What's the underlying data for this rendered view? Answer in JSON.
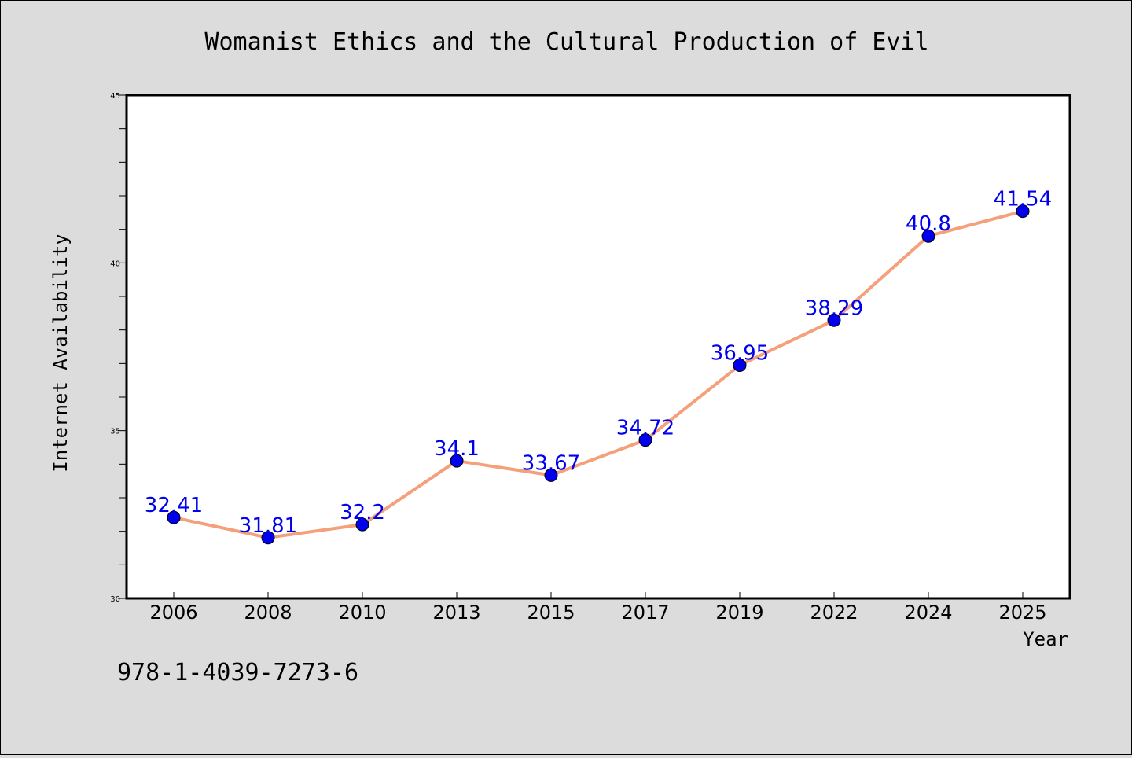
{
  "chart_data": {
    "type": "line",
    "title": "Womanist Ethics and the Cultural Production of Evil",
    "xlabel": "Year",
    "ylabel": "Internet Availability",
    "categories": [
      "2006",
      "2008",
      "2010",
      "2013",
      "2015",
      "2017",
      "2019",
      "2022",
      "2024",
      "2025"
    ],
    "series": [
      {
        "values": [
          32.41,
          31.81,
          32.2,
          34.1,
          33.67,
          34.72,
          36.95,
          38.29,
          40.8,
          41.54
        ],
        "data_labels": [
          "32.41",
          "31.81",
          "32.2",
          "34.1",
          "33.67",
          "34.72",
          "36.95",
          "38.29",
          "40.8",
          "41.54"
        ]
      }
    ],
    "ylim": [
      30,
      45
    ],
    "yticks": [
      "30",
      "35",
      "40",
      "45"
    ],
    "grid": false,
    "line_color": "#f4a07a",
    "marker_color": "#0000ee",
    "label_color": "#0000ee"
  },
  "annotation": {
    "isbn": "978-1-4039-7273-6"
  }
}
